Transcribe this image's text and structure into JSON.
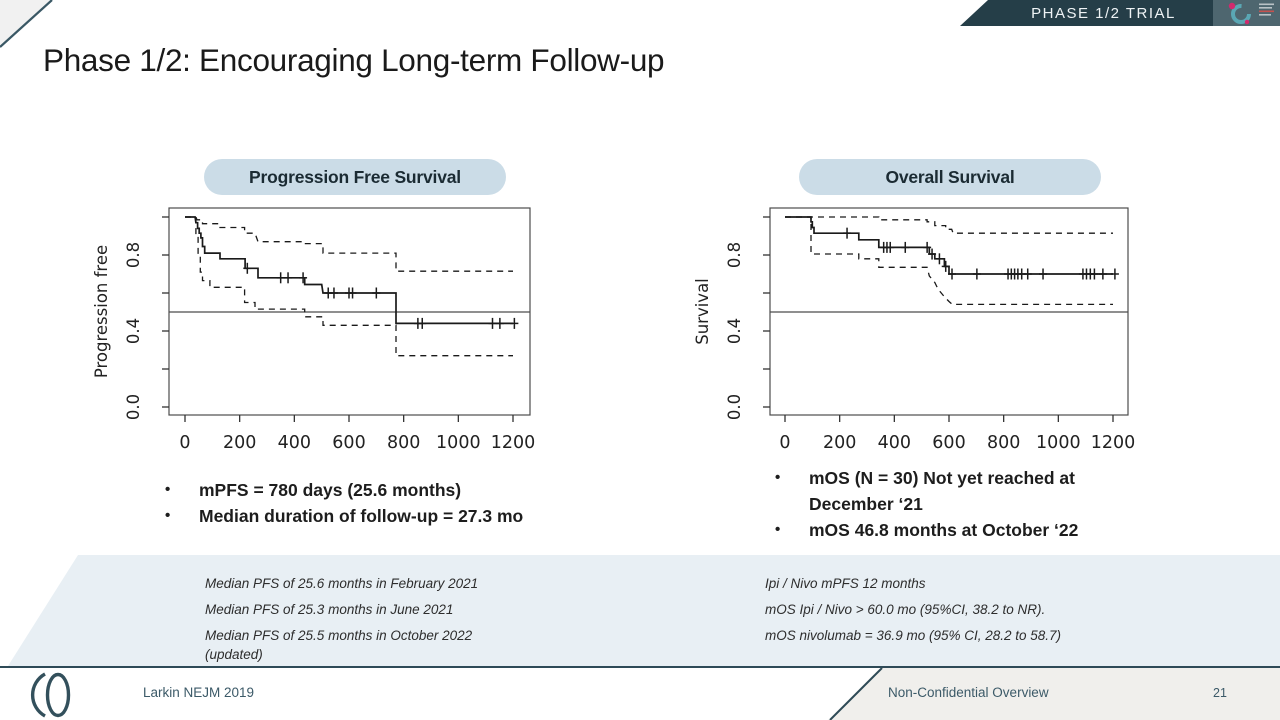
{
  "banner": {
    "label": "PHASE 1/2 TRIAL"
  },
  "title": "Phase 1/2: Encouraging Long-term Follow-up",
  "colors": {
    "banner_bg": "#253e48",
    "banner_logo_bg": "#4e666f",
    "accent_navy": "#2e4a57",
    "pill_bg": "#cbdce7",
    "band_bg": "#e8eff4",
    "footer_bg": "#f0efec",
    "logo_teal": "#5aa7b4",
    "logo_magenta": "#d12a6e"
  },
  "chart_data": [
    {
      "type": "line",
      "subtype": "kaplan-meier-step",
      "header": "Progression Free Survival",
      "ylabel": "Progression free",
      "xlim": [
        0,
        1200
      ],
      "ylim": [
        0,
        1.04
      ],
      "xticks": [
        0,
        200,
        400,
        600,
        800,
        1000,
        1200
      ],
      "yticks": [
        0,
        0.2,
        0.4,
        0.6,
        0.8,
        1.0
      ],
      "ytick_labeled": [
        0,
        0.4,
        0.8
      ],
      "refline": 0.5,
      "grid": false,
      "series": [
        {
          "name": "KM estimate",
          "style": "solid",
          "points": [
            [
              0,
              1
            ],
            [
              37,
              1
            ],
            [
              40,
              0.97
            ],
            [
              46,
              0.97
            ],
            [
              46,
              0.94
            ],
            [
              52,
              0.94
            ],
            [
              52,
              0.915
            ],
            [
              58,
              0.915
            ],
            [
              58,
              0.89
            ],
            [
              64,
              0.89
            ],
            [
              64,
              0.845
            ],
            [
              72,
              0.845
            ],
            [
              72,
              0.81
            ],
            [
              128,
              0.81
            ],
            [
              128,
              0.78
            ],
            [
              220,
              0.78
            ],
            [
              220,
              0.73
            ],
            [
              267,
              0.73
            ],
            [
              267,
              0.68
            ],
            [
              438,
              0.68
            ],
            [
              438,
              0.645
            ],
            [
              500,
              0.645
            ],
            [
              505,
              0.6
            ],
            [
              772,
              0.6
            ],
            [
              772,
              0.44
            ],
            [
              1200,
              0.44
            ]
          ]
        },
        {
          "name": "95% CI upper",
          "style": "dashed",
          "points": [
            [
              0,
              1
            ],
            [
              40,
              1
            ],
            [
              44,
              0.985
            ],
            [
              64,
              0.985
            ],
            [
              64,
              0.965
            ],
            [
              128,
              0.965
            ],
            [
              128,
              0.945
            ],
            [
              218,
              0.945
            ],
            [
              218,
              0.915
            ],
            [
              256,
              0.915
            ],
            [
              267,
              0.87
            ],
            [
              438,
              0.87
            ],
            [
              438,
              0.86
            ],
            [
              505,
              0.86
            ],
            [
              505,
              0.81
            ],
            [
              772,
              0.81
            ],
            [
              772,
              0.715
            ],
            [
              1200,
              0.715
            ]
          ]
        },
        {
          "name": "95% CI lower",
          "style": "dashed",
          "points": [
            [
              0,
              1
            ],
            [
              40,
              1
            ],
            [
              40,
              0.9
            ],
            [
              48,
              0.9
            ],
            [
              48,
              0.8
            ],
            [
              56,
              0.8
            ],
            [
              56,
              0.71
            ],
            [
              64,
              0.71
            ],
            [
              64,
              0.665
            ],
            [
              91,
              0.665
            ],
            [
              91,
              0.63
            ],
            [
              218,
              0.63
            ],
            [
              218,
              0.55
            ],
            [
              256,
              0.55
            ],
            [
              256,
              0.515
            ],
            [
              438,
              0.515
            ],
            [
              438,
              0.475
            ],
            [
              505,
              0.475
            ],
            [
              505,
              0.43
            ],
            [
              772,
              0.43
            ],
            [
              772,
              0.27
            ],
            [
              1200,
              0.27
            ]
          ]
        }
      ],
      "censor_marks": [
        [
          228,
          0.73
        ],
        [
          350,
          0.68
        ],
        [
          377,
          0.68
        ],
        [
          432,
          0.68
        ],
        [
          524,
          0.6
        ],
        [
          545,
          0.6
        ],
        [
          600,
          0.6
        ],
        [
          613,
          0.6
        ],
        [
          700,
          0.6
        ],
        [
          852,
          0.44
        ],
        [
          868,
          0.44
        ],
        [
          1125,
          0.44
        ],
        [
          1152,
          0.44
        ],
        [
          1205,
          0.44
        ]
      ]
    },
    {
      "type": "line",
      "subtype": "kaplan-meier-step",
      "header": "Overall Survival",
      "ylabel": "Survival",
      "xlim": [
        0,
        1200
      ],
      "ylim": [
        0,
        1.04
      ],
      "xticks": [
        0,
        200,
        400,
        600,
        800,
        1000,
        1200
      ],
      "yticks": [
        0,
        0.2,
        0.4,
        0.6,
        0.8,
        1.0
      ],
      "ytick_labeled": [
        0,
        0.4,
        0.8
      ],
      "refline": 0.5,
      "grid": false,
      "series": [
        {
          "name": "KM estimate",
          "style": "solid",
          "points": [
            [
              0,
              1
            ],
            [
              95,
              1
            ],
            [
              95,
              0.975
            ],
            [
              100,
              0.975
            ],
            [
              100,
              0.945
            ],
            [
              106,
              0.945
            ],
            [
              106,
              0.915
            ],
            [
              270,
              0.915
            ],
            [
              270,
              0.88
            ],
            [
              343,
              0.88
            ],
            [
              343,
              0.84
            ],
            [
              528,
              0.84
            ],
            [
              528,
              0.805
            ],
            [
              548,
              0.805
            ],
            [
              548,
              0.78
            ],
            [
              583,
              0.78
            ],
            [
              583,
              0.74
            ],
            [
              600,
              0.74
            ],
            [
              600,
              0.7
            ],
            [
              1200,
              0.7
            ]
          ]
        },
        {
          "name": "95% CI upper",
          "style": "dashed",
          "points": [
            [
              0,
              1
            ],
            [
              343,
              1
            ],
            [
              343,
              0.985
            ],
            [
              520,
              0.985
            ],
            [
              520,
              0.975
            ],
            [
              548,
              0.975
            ],
            [
              548,
              0.955
            ],
            [
              588,
              0.955
            ],
            [
              588,
              0.935
            ],
            [
              610,
              0.935
            ],
            [
              615,
              0.915
            ],
            [
              1200,
              0.915
            ]
          ]
        },
        {
          "name": "95% CI lower",
          "style": "dashed",
          "points": [
            [
              0,
              1
            ],
            [
              95,
              1
            ],
            [
              95,
              0.805
            ],
            [
              270,
              0.805
            ],
            [
              270,
              0.78
            ],
            [
              343,
              0.78
            ],
            [
              343,
              0.735
            ],
            [
              520,
              0.735
            ],
            [
              528,
              0.69
            ],
            [
              548,
              0.655
            ],
            [
              560,
              0.62
            ],
            [
              583,
              0.58
            ],
            [
              600,
              0.555
            ],
            [
              612,
              0.54
            ],
            [
              1200,
              0.54
            ]
          ]
        }
      ],
      "censor_marks": [
        [
          227,
          0.915
        ],
        [
          361,
          0.84
        ],
        [
          373,
          0.84
        ],
        [
          385,
          0.84
        ],
        [
          440,
          0.84
        ],
        [
          520,
          0.84
        ],
        [
          538,
          0.805
        ],
        [
          565,
          0.78
        ],
        [
          588,
          0.74
        ],
        [
          611,
          0.7
        ],
        [
          702,
          0.7
        ],
        [
          816,
          0.7
        ],
        [
          828,
          0.7
        ],
        [
          840,
          0.7
        ],
        [
          852,
          0.7
        ],
        [
          866,
          0.7
        ],
        [
          888,
          0.7
        ],
        [
          944,
          0.7
        ],
        [
          1090,
          0.7
        ],
        [
          1103,
          0.7
        ],
        [
          1117,
          0.7
        ],
        [
          1132,
          0.7
        ],
        [
          1163,
          0.7
        ],
        [
          1207,
          0.7
        ]
      ]
    }
  ],
  "bullets_left": [
    "mPFS = 780 days (25.6 months)",
    "Median duration of follow-up = 27.3 mo"
  ],
  "bullets_right": [
    "mOS (N = 30) Not yet reached at December ‘21",
    "mOS 46.8 months at October ‘22"
  ],
  "notes_left": [
    "Median PFS of 25.6 months in February 2021",
    "Median PFS of 25.3 months in June 2021",
    "Median PFS of 25.5 months in October 2022",
    "(updated)"
  ],
  "notes_right": [
    "Ipi / Nivo mPFS 12 months",
    "mOS Ipi / Nivo > 60.0 mo (95%CI, 38.2 to NR).",
    "mOS nivolumab = 36.9 mo (95% CI, 28.2 to 58.7)"
  ],
  "footer": {
    "citation": "Larkin NEJM 2019",
    "classification": "Non-Confidential Overview",
    "page": "21"
  }
}
